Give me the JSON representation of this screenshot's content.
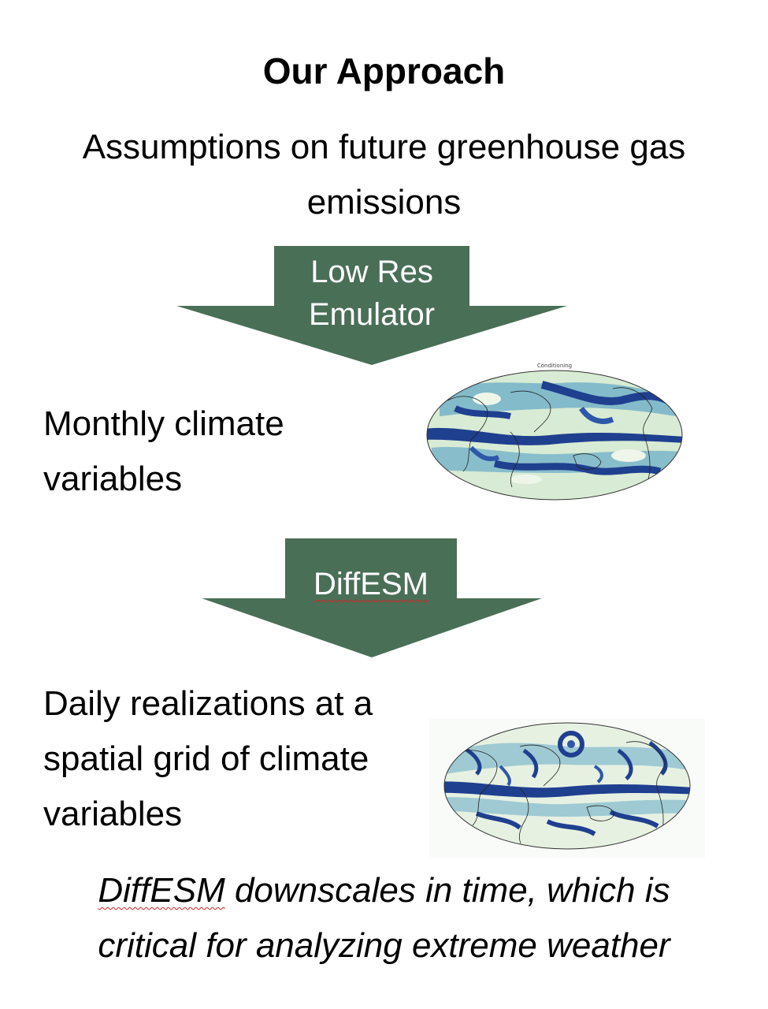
{
  "title": "Our Approach",
  "subtitle": "Assumptions on future greenhouse gas emissions",
  "arrow1": {
    "label_line1": "Low Res",
    "label_line2": "Emulator"
  },
  "step1": {
    "text_line1": "Monthly climate",
    "text_line2": "variables",
    "map_caption": "Conditioning"
  },
  "arrow2": {
    "label": "DiffESM"
  },
  "step2": {
    "text_line1": "Daily realizations at a",
    "text_line2": "spatial grid of climate",
    "text_line3": "variables"
  },
  "footer": {
    "emphasis": "DiffESM",
    "rest_line1": " downscales in time, which is",
    "line2": "critical for analyzing extreme weather"
  },
  "colors": {
    "arrow_fill": "#4a6f57",
    "map_dark": "#1f3f8f",
    "map_mid": "#7ab6c9",
    "map_light": "#d8ebd4"
  },
  "icons": [
    "down-arrow-shape",
    "world-map-plot"
  ]
}
